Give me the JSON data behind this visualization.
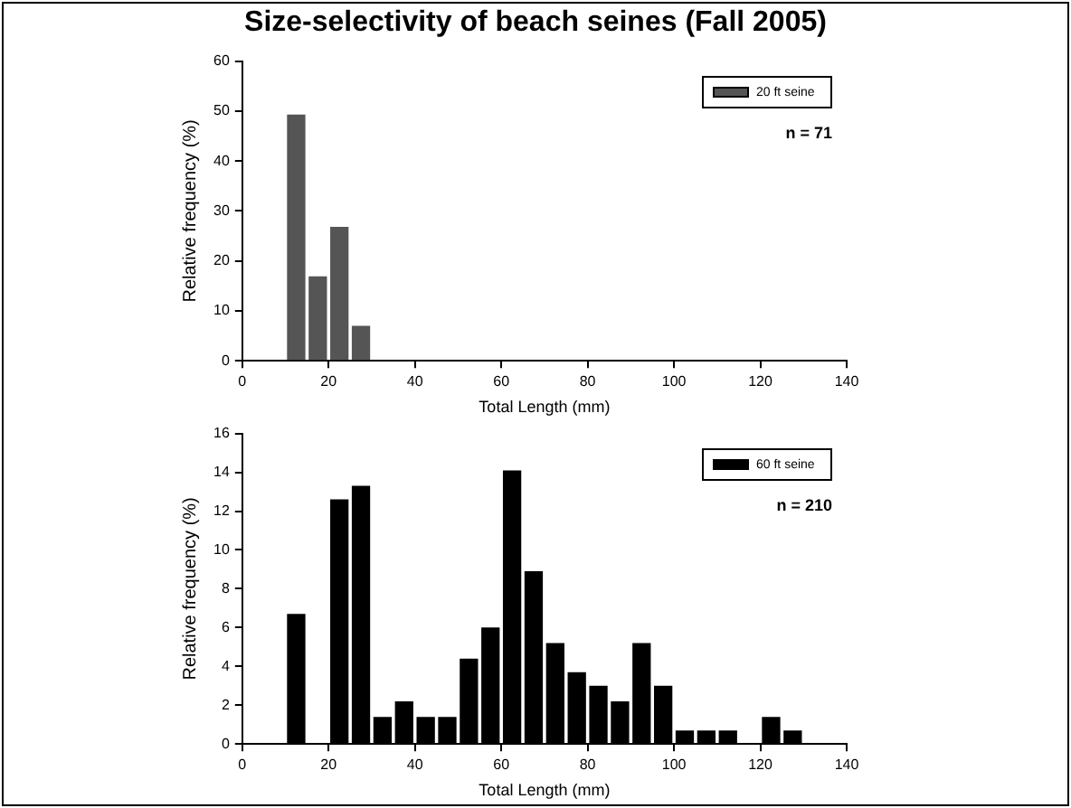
{
  "chart_data": [
    {
      "type": "histogram",
      "title": "Size-selectivity of beach seines (Fall 2005)",
      "xlabel": "Total Length (mm)",
      "ylabel": "Relative frequency (%)",
      "bins": [
        10,
        15,
        20,
        25,
        30
      ],
      "series": [
        {
          "name": "20 ft seine",
          "color": "#555555",
          "values": [
            49.3,
            16.9,
            26.8,
            7.0
          ]
        }
      ],
      "xlim": [
        0,
        140
      ],
      "xticks": [
        0,
        20,
        40,
        60,
        80,
        100,
        120,
        140
      ],
      "ylim": [
        0,
        60
      ],
      "yticks": [
        0,
        10,
        20,
        30,
        40,
        50,
        60
      ],
      "grid": false,
      "legend": "top right",
      "annotations": [
        "n = 71"
      ]
    },
    {
      "type": "histogram",
      "xlabel": "Total Length (mm)",
      "ylabel": "Relative frequency (%)",
      "bins": [
        10,
        15,
        20,
        25,
        30,
        35,
        40,
        45,
        50,
        55,
        60,
        65,
        70,
        75,
        80,
        85,
        90,
        95,
        100,
        105,
        110,
        115,
        120,
        125,
        130
      ],
      "series": [
        {
          "name": "60 ft seine",
          "color": "#000000",
          "values": [
            6.7,
            0,
            12.6,
            13.3,
            1.4,
            2.2,
            1.4,
            1.4,
            4.4,
            6.0,
            14.1,
            8.9,
            5.2,
            3.7,
            3.0,
            2.2,
            5.2,
            3.0,
            0.7,
            0.7,
            0.7,
            0,
            1.4,
            0.7
          ]
        }
      ],
      "xlim": [
        0,
        140
      ],
      "xticks": [
        0,
        20,
        40,
        60,
        80,
        100,
        120,
        140
      ],
      "ylim": [
        0,
        16
      ],
      "yticks": [
        0,
        2,
        4,
        6,
        8,
        10,
        12,
        14,
        16
      ],
      "grid": false,
      "legend": "top right",
      "annotations": [
        "n = 210"
      ]
    }
  ]
}
